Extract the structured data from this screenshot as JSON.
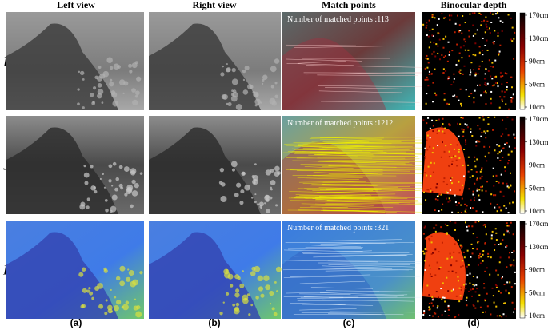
{
  "headers": [
    "Left view",
    "Right view",
    "Match points",
    "Binocular depth"
  ],
  "rows": [
    {
      "label": "I",
      "match_text": "Number of matched points :113"
    },
    {
      "label": "J",
      "match_text": "Number of matched points :1212"
    },
    {
      "label": "P",
      "label_sub": "I",
      "match_text": "Number of matched points :321"
    }
  ],
  "colorbar_ticks": [
    "170cm",
    "130cm",
    "90cm",
    "50cm",
    "10cm"
  ],
  "captions": [
    "(a)",
    "(b)",
    "(c)",
    "(d)"
  ]
}
